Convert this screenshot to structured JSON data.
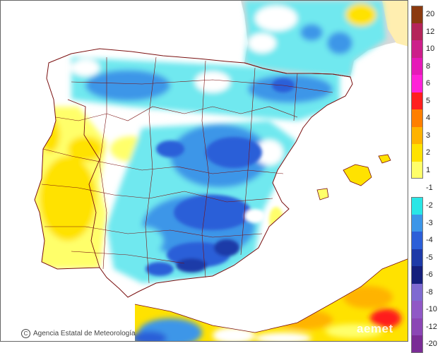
{
  "credit": "Agencia Estatal de Meteorología",
  "watermark": "aemet",
  "legend": {
    "warm": [
      {
        "label": "20",
        "color": "#8b3a0f"
      },
      {
        "label": "12",
        "color": "#b4245a"
      },
      {
        "label": "10",
        "color": "#cc1f8a"
      },
      {
        "label": "8",
        "color": "#e51ab8"
      },
      {
        "label": "6",
        "color": "#ff22d8"
      },
      {
        "label": "5",
        "color": "#ff1f1f"
      },
      {
        "label": "4",
        "color": "#ff7f00"
      },
      {
        "label": "3",
        "color": "#ffb300"
      },
      {
        "label": "2",
        "color": "#ffe200"
      },
      {
        "label": "1",
        "color": "#ffff6a"
      }
    ],
    "neutral": {
      "label": "-1",
      "color": "#ffffff"
    },
    "cold": [
      {
        "label": "-2",
        "color": "#29e6e6"
      },
      {
        "label": "-3",
        "color": "#3c96e8"
      },
      {
        "label": "-4",
        "color": "#2c5fd8"
      },
      {
        "label": "-5",
        "color": "#1e3aa8"
      },
      {
        "label": "-6",
        "color": "#151f7c"
      },
      {
        "label": "-8",
        "color": "#7f6ad1"
      },
      {
        "label": "-10",
        "color": "#9058c6"
      },
      {
        "label": "-12",
        "color": "#8b46b5"
      },
      {
        "label": "-20",
        "color": "#7a2c96"
      }
    ]
  },
  "colors": {
    "sea": "#ffffff",
    "foreign_land": "#d9d9d9",
    "borders": "#7a1010"
  }
}
